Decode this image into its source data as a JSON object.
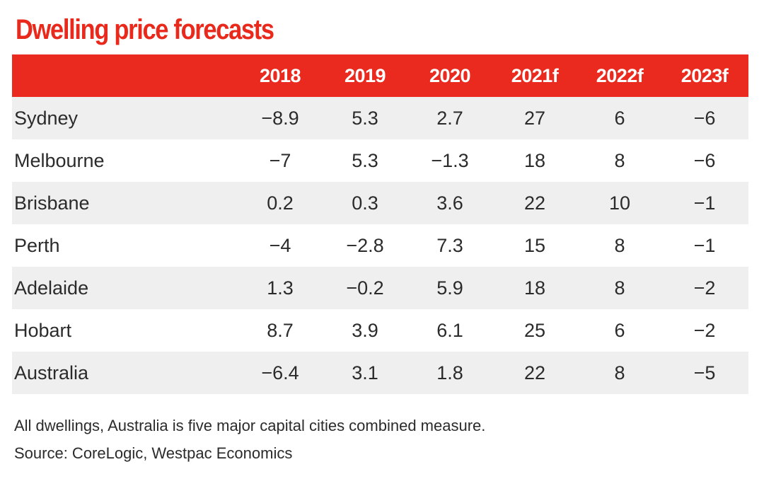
{
  "title": "Dwelling price forecasts",
  "chart_data": {
    "type": "table",
    "title": "Dwelling price forecasts",
    "columns": [
      "",
      "2018",
      "2019",
      "2020",
      "2021f",
      "2022f",
      "2023f"
    ],
    "rows": [
      {
        "name": "Sydney",
        "values": [
          "−8.9",
          "5.3",
          "2.7",
          "27",
          "6",
          "−6"
        ]
      },
      {
        "name": "Melbourne",
        "values": [
          "−7",
          "5.3",
          "−1.3",
          "18",
          "8",
          "−6"
        ]
      },
      {
        "name": "Brisbane",
        "values": [
          "0.2",
          "0.3",
          "3.6",
          "22",
          "10",
          "−1"
        ]
      },
      {
        "name": "Perth",
        "values": [
          "−4",
          "−2.8",
          "7.3",
          "15",
          "8",
          "−1"
        ]
      },
      {
        "name": "Adelaide",
        "values": [
          "1.3",
          "−0.2",
          "5.9",
          "18",
          "8",
          "−2"
        ]
      },
      {
        "name": "Hobart",
        "values": [
          "8.7",
          "3.9",
          "6.1",
          "25",
          "6",
          "−2"
        ]
      },
      {
        "name": "Australia",
        "values": [
          "−6.4",
          "3.1",
          "1.8",
          "22",
          "8",
          "−5"
        ]
      }
    ]
  },
  "notes": [
    "All dwellings, Australia is five major capital cities combined measure.",
    "Source: CoreLogic, Westpac Economics"
  ],
  "colors": {
    "accent": "#ea2a1e",
    "title": "#e8291c",
    "row_shade": "#efefef",
    "text": "#2b2b2b"
  }
}
